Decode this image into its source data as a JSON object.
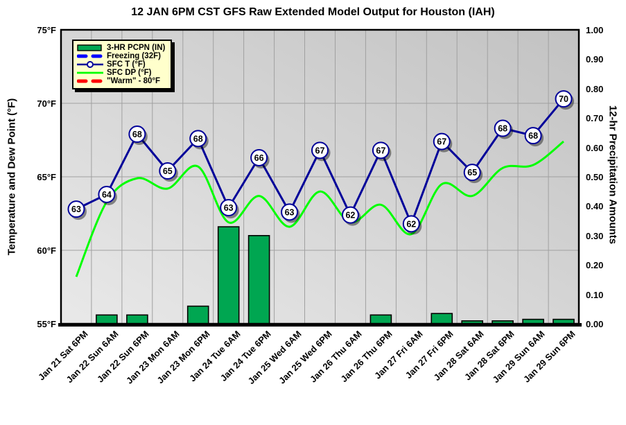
{
  "title": "12 JAN 6PM CST GFS Raw Extended Model Output for Houston (IAH)",
  "left_axis": {
    "title": "Temperature and Dew Point (°F)",
    "tick_labels": [
      "75°F",
      "70°F",
      "65°F",
      "60°F",
      "55°F"
    ],
    "tick_values": [
      75,
      70,
      65,
      60,
      55
    ],
    "min": 55,
    "max": 75
  },
  "right_axis": {
    "title": "12-hr Precipitation Amounts",
    "tick_labels": [
      "1.00",
      "0.90",
      "0.80",
      "0.70",
      "0.60",
      "0.50",
      "0.40",
      "0.30",
      "0.20",
      "0.10",
      "0.00"
    ],
    "tick_values": [
      1.0,
      0.9,
      0.8,
      0.7,
      0.6,
      0.5,
      0.4,
      0.3,
      0.2,
      0.1,
      0.0
    ],
    "min": 0,
    "max": 1
  },
  "legend": {
    "items": [
      {
        "label": "3-HR PCPN (IN)",
        "swatch": "bar",
        "color": "#00A651"
      },
      {
        "label": "Freezing (32F)",
        "swatch": "dash",
        "color": "#0000FF"
      },
      {
        "label": "SFC T (°F)",
        "swatch": "line-circle",
        "color": "#000099"
      },
      {
        "label": "SFC DP (°F)",
        "swatch": "line",
        "color": "#00FF00"
      },
      {
        "label": "\"Warm\" - 80°F",
        "swatch": "dash",
        "color": "#FF0000"
      }
    ]
  },
  "colors": {
    "temp_line": "#000099",
    "dewpoint_line": "#00FF00",
    "bar_fill": "#00A651",
    "bar_border": "#000000",
    "freezing_line": "#0000FF",
    "warm_line": "#FF0000",
    "plot_bg_dark": "#c2c2c2",
    "plot_bg_light": "#e9e9e9",
    "gridline": "#a0a0a0",
    "legend_bg": "#FFFFCC",
    "marker_fill": "#FFFFFF",
    "text": "#000000"
  },
  "chart_data": {
    "type": "combo",
    "categories": [
      "Jan 21 Sat 6PM",
      "Jan 22 Sun 6AM",
      "Jan 22 Sun 6PM",
      "Jan 23 Mon 6AM",
      "Jan 23 Mon 6PM",
      "Jan 24 Tue 6AM",
      "Jan 24 Tue 6PM",
      "Jan 25 Wed 6AM",
      "Jan 25 Wed 6PM",
      "Jan 26 Thu 6AM",
      "Jan 26 Thu 6PM",
      "Jan 27 Fri 6AM",
      "Jan 27 Fri 6PM",
      "Jan 28 Sat 6AM",
      "Jan 28 Sat 6PM",
      "Jan 29 Sun 6AM",
      "Jan 29 Sun 6PM"
    ],
    "series": [
      {
        "name": "3-HR PCPN (IN)",
        "type": "bar",
        "axis": "right",
        "color": "#00A651",
        "values": [
          0,
          0.03,
          0.03,
          0,
          0.06,
          0.33,
          0.3,
          0,
          0,
          0,
          0.03,
          0,
          0.035,
          0.01,
          0.01,
          0.015,
          0.015
        ]
      },
      {
        "name": "SFC T (°F)",
        "type": "line",
        "axis": "left",
        "color": "#000099",
        "point_labels": [
          63,
          64,
          68,
          65,
          68,
          63,
          66,
          63,
          67,
          62,
          67,
          62,
          67,
          65,
          68,
          68,
          70
        ],
        "values": [
          62.8,
          63.8,
          67.9,
          65.4,
          67.6,
          62.9,
          66.3,
          62.6,
          66.8,
          62.4,
          66.8,
          61.8,
          67.4,
          65.3,
          68.3,
          67.8,
          70.3
        ]
      },
      {
        "name": "SFC DP (°F)",
        "type": "smooth-line",
        "axis": "left",
        "color": "#00FF00",
        "values": [
          58.2,
          63.3,
          64.9,
          64.2,
          65.7,
          61.9,
          63.7,
          61.6,
          64.0,
          61.9,
          63.1,
          61.1,
          64.5,
          63.7,
          65.6,
          65.8,
          67.4
        ]
      },
      {
        "name": "Freezing (32F)",
        "type": "reference-line",
        "axis": "left",
        "value": 32,
        "color": "#0000FF",
        "visible_in_plot": false
      },
      {
        "name": "\"Warm\" - 80°F",
        "type": "reference-line",
        "axis": "left",
        "value": 80,
        "color": "#FF0000",
        "visible_in_plot": false
      }
    ],
    "grid": {
      "horizontal_at": [
        70,
        65,
        60
      ],
      "vertical": "category-boundaries"
    },
    "legend_position": "top-left-inside"
  }
}
